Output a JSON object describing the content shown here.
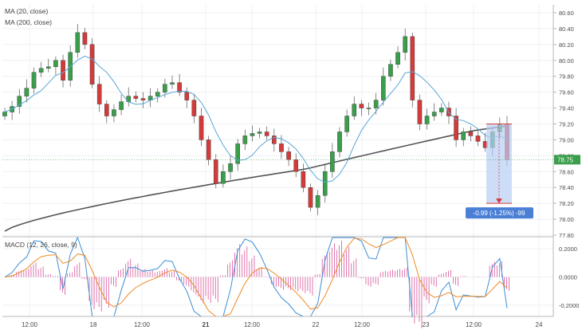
{
  "chart_data": {
    "type": "candlestick",
    "indicators": {
      "ma20_label": "MA (20, close)",
      "ma200_label": "MA (200, close)",
      "macd_label": "MACD (12, 26, close, 9)"
    },
    "price_axis": {
      "ylim": [
        77.8,
        80.7
      ],
      "ticks": [
        "80.60",
        "80.40",
        "80.20",
        "80.00",
        "79.80",
        "79.60",
        "79.40",
        "79.20",
        "79.00",
        "78.80",
        "78.60",
        "78.40",
        "78.20",
        "78.00",
        "77.80"
      ]
    },
    "macd_axis": {
      "ylim": [
        -0.28,
        0.28
      ],
      "ticks": [
        "0.2000",
        "0.0000",
        "-0.2000"
      ]
    },
    "x_axis": {
      "ticks": [
        {
          "label": "12:00",
          "bold": false
        },
        {
          "label": "18",
          "bold": false
        },
        {
          "label": "12:00",
          "bold": false
        },
        {
          "label": "21",
          "bold": true
        },
        {
          "label": "12:00",
          "bold": false
        },
        {
          "label": "22",
          "bold": false
        },
        {
          "label": "12:00",
          "bold": false
        },
        {
          "label": "23",
          "bold": false
        },
        {
          "label": "12:00",
          "bold": false
        },
        {
          "label": "24",
          "bold": false
        }
      ]
    },
    "candles_close": [
      79.35,
      79.42,
      79.55,
      79.65,
      79.85,
      79.9,
      79.92,
      80.0,
      79.75,
      80.1,
      80.35,
      80.2,
      79.7,
      79.45,
      79.3,
      79.38,
      79.48,
      79.55,
      79.52,
      79.5,
      79.55,
      79.6,
      79.7,
      79.72,
      79.6,
      79.5,
      79.3,
      79.0,
      78.75,
      78.45,
      78.6,
      78.7,
      78.95,
      79.05,
      79.08,
      79.1,
      79.05,
      78.95,
      78.85,
      78.75,
      78.6,
      78.4,
      78.15,
      78.3,
      78.6,
      78.85,
      79.1,
      79.3,
      79.45,
      79.4,
      79.4,
      79.5,
      79.8,
      79.95,
      80.1,
      80.3,
      79.5,
      79.2,
      79.3,
      79.35,
      79.4,
      79.3,
      79.0,
      79.1,
      79.05,
      78.98,
      78.9,
      79.1,
      79.2,
      78.75
    ],
    "current_price": "78.75",
    "measure_tool": {
      "from": 79.2,
      "to": 78.2,
      "label": "-0.99 (-1.25%) -99"
    }
  }
}
